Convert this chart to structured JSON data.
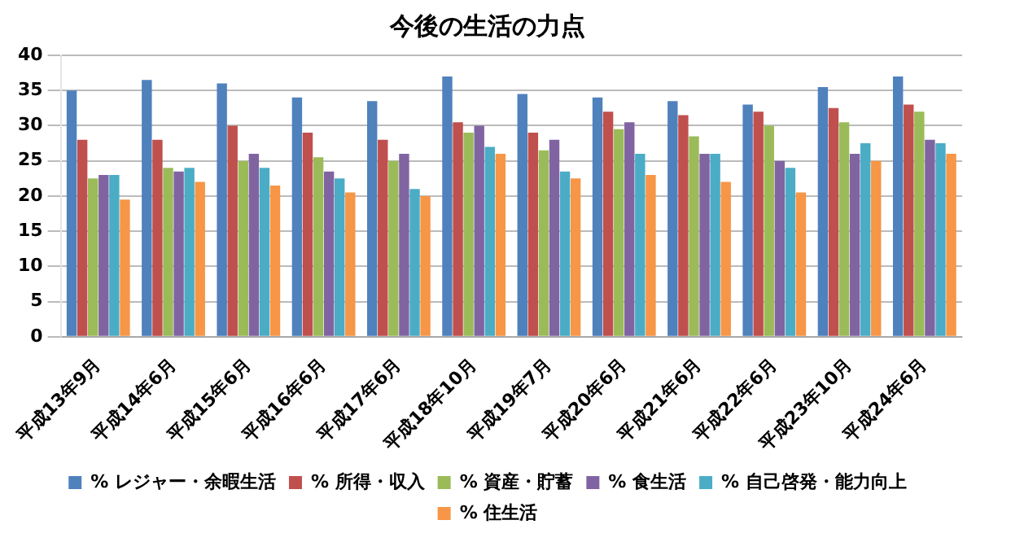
{
  "chart_data": {
    "type": "bar",
    "title": "今後の生活の力点",
    "categories": [
      "平成13年9月",
      "平成14年6月",
      "平成15年6月",
      "平成16年6月",
      "平成17年6月",
      "平成18年10月",
      "平成19年7月",
      "平成20年6月",
      "平成21年6月",
      "平成22年6月",
      "平成23年10月",
      "平成24年6月"
    ],
    "series": [
      {
        "name": "% レジャー・余暇生活",
        "color": "#4f81bd",
        "values": [
          35,
          36.5,
          36,
          34,
          33.5,
          37,
          34.5,
          34,
          33.5,
          33,
          35.5,
          37
        ]
      },
      {
        "name": "% 所得・収入",
        "color": "#c0504d",
        "values": [
          28,
          28,
          30,
          29,
          28,
          30.5,
          29,
          32,
          31.5,
          32,
          32.5,
          33
        ]
      },
      {
        "name": "% 資産・貯蓄",
        "color": "#9bbb59",
        "values": [
          22.5,
          24,
          25,
          25.5,
          25,
          29,
          26.5,
          29.5,
          28.5,
          30,
          30.5,
          32
        ]
      },
      {
        "name": "% 食生活",
        "color": "#8064a2",
        "values": [
          23,
          23.5,
          26,
          23.5,
          26,
          30,
          28,
          30.5,
          26,
          25,
          26,
          28
        ]
      },
      {
        "name": "% 自己啓発・能力向上",
        "color": "#4bacc6",
        "values": [
          23,
          24,
          24,
          22.5,
          21,
          27,
          23.5,
          26,
          26,
          24,
          27.5,
          27.5
        ]
      },
      {
        "name": "% 住生活",
        "color": "#f79646",
        "values": [
          19.5,
          22,
          21.5,
          20.5,
          20,
          26,
          22.5,
          23,
          22,
          20.5,
          25,
          26
        ]
      }
    ],
    "ylim": [
      0,
      40
    ],
    "yticks": [
      0,
      5,
      10,
      15,
      20,
      25,
      30,
      35,
      40
    ],
    "grid": "y",
    "legend": "bottom"
  }
}
